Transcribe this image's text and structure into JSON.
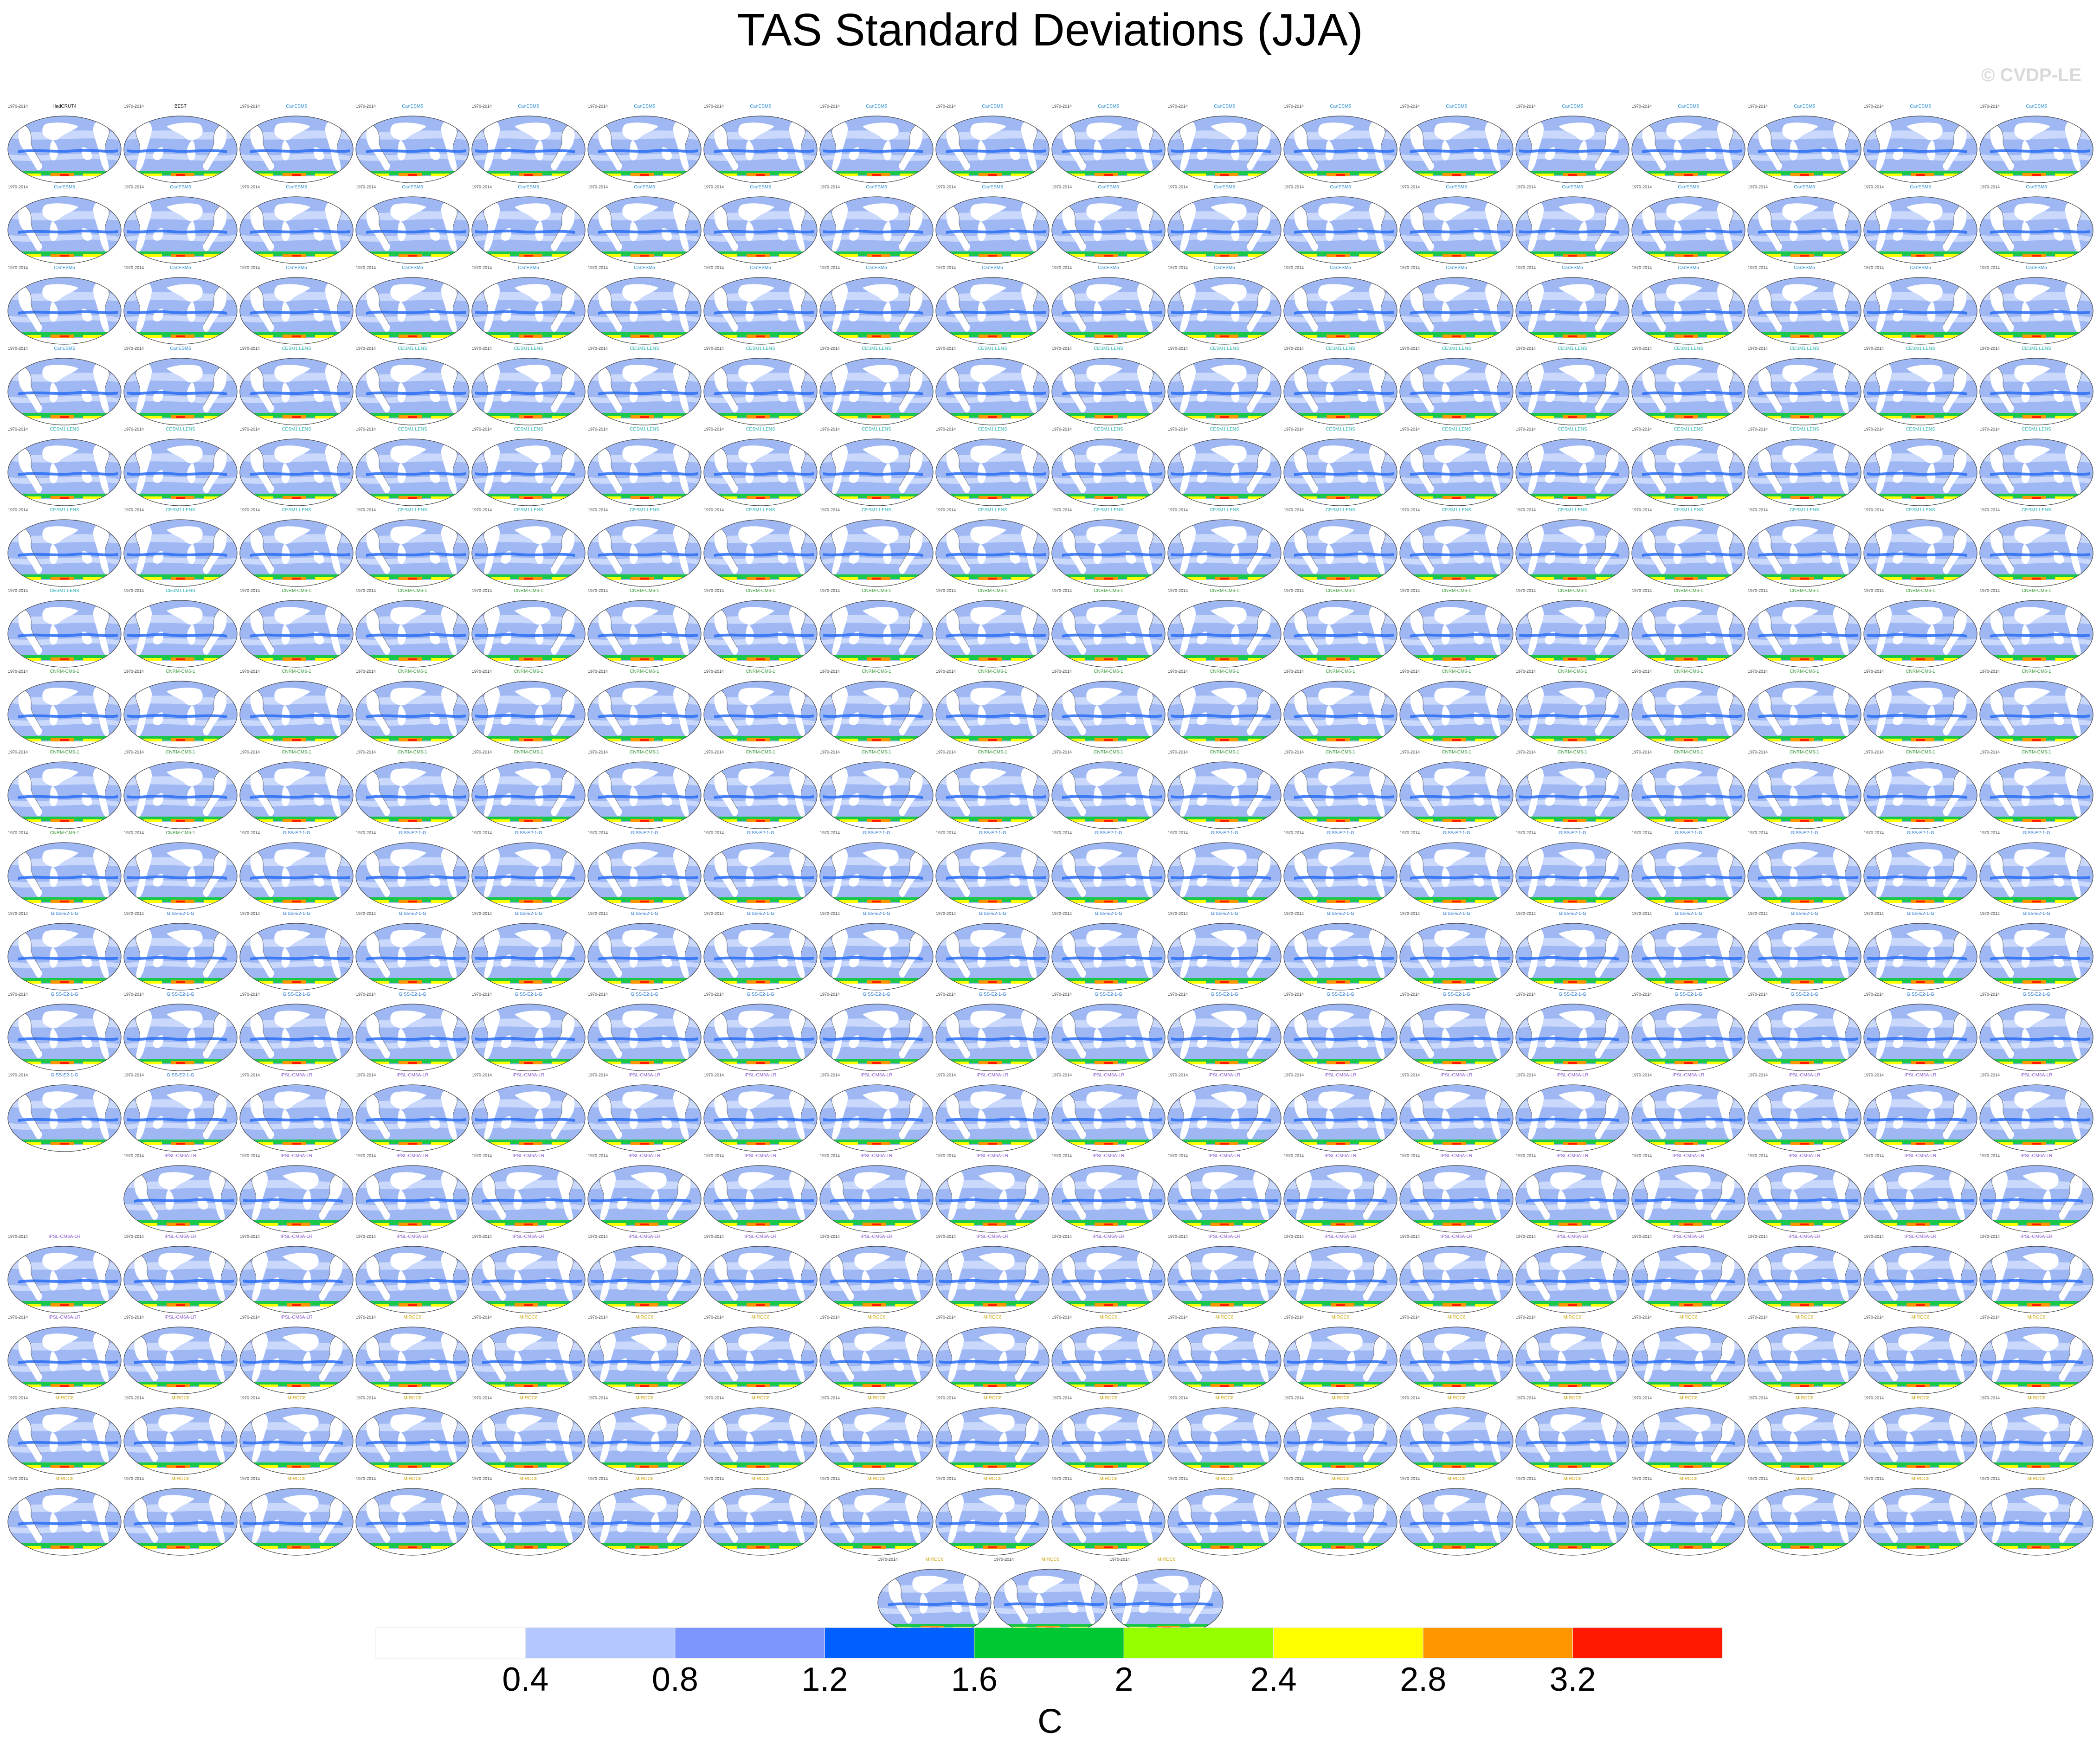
{
  "figure": {
    "title": "TAS Standard Deviations (JJA)",
    "watermark": "© CVDP-LE"
  },
  "panels": {
    "period": "1970-2014",
    "observations": [
      {
        "name": "HadCRUT4"
      },
      {
        "name": "BEST"
      }
    ],
    "model_groups": [
      {
        "model": "CanESM5",
        "title_color": "#2a8fd6"
      },
      {
        "model": "CESM1 LENS",
        "title_color": "#2ab0b0"
      },
      {
        "model": "CNRM-CM6-1",
        "title_color": "#3a9a3a"
      },
      {
        "model": "GISS-E2-1-G",
        "title_color": "#1e6fd0"
      },
      {
        "model": "IPSL-CM6A-LR",
        "title_color": "#8a5ad0"
      },
      {
        "model": "MIROC6",
        "title_color": "#c8a000"
      }
    ],
    "row_counts": [
      18,
      18,
      18,
      18,
      18,
      18,
      18,
      18,
      18,
      18,
      18,
      18,
      18,
      17,
      18,
      18,
      18,
      18,
      3
    ],
    "row_offsets": [
      0,
      0,
      0,
      0,
      0,
      0,
      0,
      0,
      0,
      0,
      0,
      0,
      0,
      1,
      0,
      0,
      0,
      0,
      7.5
    ]
  },
  "chart_data": {
    "type": "heatmap",
    "variable": "TAS",
    "season": "JJA",
    "title": "TAS Standard Deviations (JJA)",
    "colorbar": {
      "label": "C",
      "levels": [
        0.4,
        0.8,
        1.2,
        1.6,
        2,
        2.4,
        2.8,
        3.2
      ],
      "tick_labels": [
        "0.4",
        "0.8",
        "1.2",
        "1.6",
        "2",
        "2.4",
        "2.8",
        "3.2"
      ],
      "colors": [
        "#ffffff",
        "#b4c8ff",
        "#7d96ff",
        "#005fff",
        "#00c832",
        "#96ff00",
        "#ffff00",
        "#ff9600",
        "#ff1900"
      ]
    },
    "panel_count": 326,
    "projection": "Robinson, Pacific-centered"
  }
}
